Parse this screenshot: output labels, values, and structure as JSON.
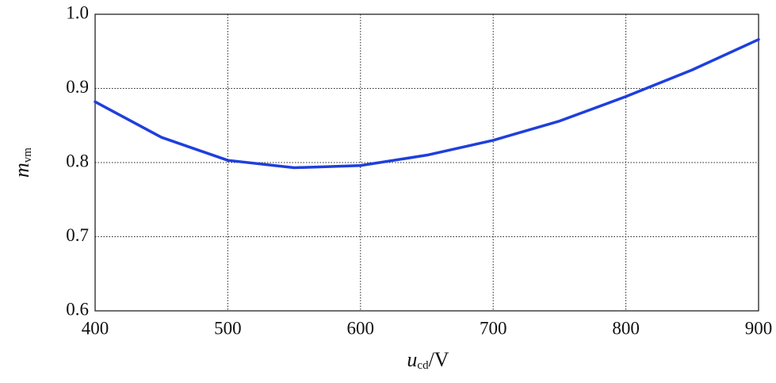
{
  "chart_data": {
    "type": "line",
    "xlabel": {
      "text": "u",
      "subscript": "cd",
      "suffix": "/V"
    },
    "ylabel": {
      "text": "m",
      "subscript": "vm"
    },
    "x": [
      400,
      450,
      500,
      550,
      600,
      650,
      700,
      750,
      800,
      850,
      900
    ],
    "series": [
      {
        "color": "#1f3fdc",
        "values": [
          0.882,
          0.834,
          0.803,
          0.793,
          0.796,
          0.81,
          0.83,
          0.856,
          0.889,
          0.925,
          0.966
        ]
      }
    ],
    "xlim": [
      400,
      900
    ],
    "xticks": [
      400,
      500,
      600,
      700,
      800,
      900
    ],
    "ylim": [
      0.6,
      1.0
    ],
    "yticks": [
      0.6,
      0.7,
      0.8,
      0.9,
      {
        "value": 1.0,
        "label": "1.0"
      }
    ],
    "grid": true
  }
}
